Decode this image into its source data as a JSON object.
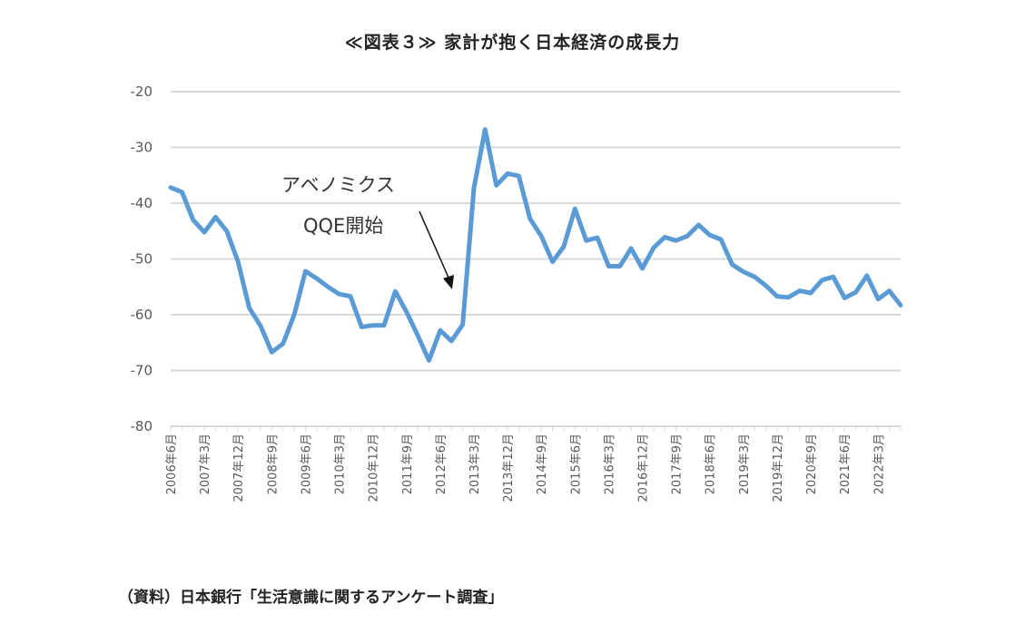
{
  "chart_data": {
    "type": "line",
    "title": "≪図表３≫ 家計が抱く日本経済の成長力",
    "source": "（資料）日本銀行「生活意識に関するアンケート調査」",
    "ylim": [
      -80,
      -20
    ],
    "yticks": [
      -20,
      -30,
      -40,
      -50,
      -60,
      -70,
      -80
    ],
    "x_tick_labels": [
      "2006年6月",
      "2007年3月",
      "2007年12月",
      "2008年9月",
      "2009年6月",
      "2010年3月",
      "2010年12月",
      "2011年9月",
      "2012年6月",
      "2013年3月",
      "2013年12月",
      "2014年9月",
      "2015年6月",
      "2016年3月",
      "2016年12月",
      "2017年9月",
      "2018年6月",
      "2019年3月",
      "2019年12月",
      "2020年9月",
      "2021年6月",
      "2022年3月"
    ],
    "grid": true,
    "legend": "none",
    "line_color": "#5b9bd5",
    "annotations": [
      {
        "text": "アベノミクス",
        "line": 1
      },
      {
        "text": "QQE開始",
        "line": 2
      }
    ],
    "series": [
      {
        "values": [
          -37.2,
          -38,
          -43,
          -45.2,
          -42.5,
          -45,
          -50.5,
          -58.8,
          -62,
          -66.7,
          -65.2,
          -60,
          -52.2,
          -53.5,
          -55,
          -56.3,
          -56.7,
          -62.2,
          -61.9,
          -61.9,
          -55.8,
          -59.5,
          -63.7,
          -68.2,
          -62.8,
          -64.7,
          -61.8,
          -37.3,
          -26.8,
          -36.8,
          -34.7,
          -35.1,
          -42.8,
          -45.9,
          -50.5,
          -47.8,
          -41,
          -46.7,
          -46.2,
          -51.3,
          -51.3,
          -48.1,
          -51.7,
          -48,
          -46.1,
          -46.7,
          -45.9,
          -43.9,
          -45.7,
          -46.5,
          -51,
          -52.3,
          -53.2,
          -54.8,
          -56.7,
          -56.9,
          -55.7,
          -56.1,
          -53.8,
          -53.2,
          -57,
          -56,
          -53,
          -57.2,
          -55.7,
          -58.3
        ]
      }
    ]
  }
}
